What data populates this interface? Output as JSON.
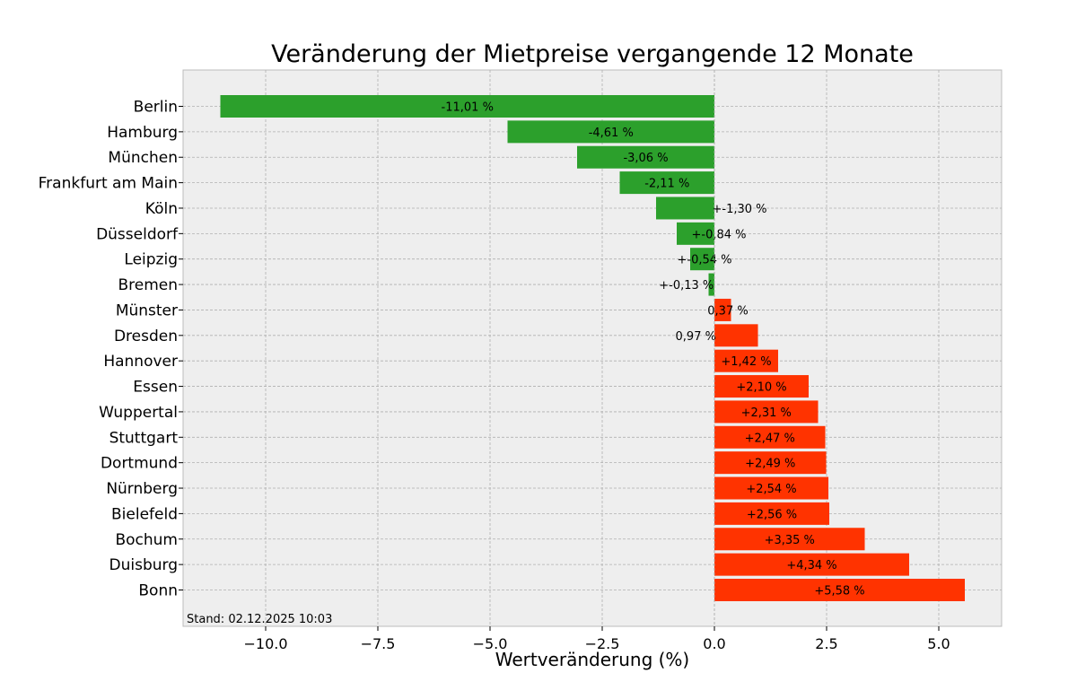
{
  "chart_data": {
    "type": "bar",
    "orientation": "horizontal",
    "title": "Veränderung der Mietpreise vergangende 12 Monate",
    "xlabel": "Wertveränderung (%)",
    "ylabel": "",
    "xlim": [
      -11.84,
      6.4
    ],
    "xticks": [
      -10.0,
      -7.5,
      -5.0,
      -2.5,
      0.0,
      2.5,
      5.0
    ],
    "xtick_labels": [
      "−10.0",
      "−7.5",
      "−5.0",
      "−2.5",
      "0.0",
      "2.5",
      "5.0"
    ],
    "grid": true,
    "categories": [
      "Berlin",
      "Hamburg",
      "München",
      "Frankfurt am Main",
      "Köln",
      "Düsseldorf",
      "Leipzig",
      "Bremen",
      "Münster",
      "Dresden",
      "Hannover",
      "Essen",
      "Wuppertal",
      "Stuttgart",
      "Dortmund",
      "Nürnberg",
      "Bielefeld",
      "Bochum",
      "Duisburg",
      "Bonn"
    ],
    "values": [
      -11.01,
      -4.61,
      -3.06,
      -2.11,
      -1.3,
      -0.84,
      -0.54,
      -0.13,
      0.37,
      0.97,
      1.42,
      2.1,
      2.31,
      2.47,
      2.49,
      2.54,
      2.56,
      3.35,
      4.34,
      5.58
    ],
    "data_labels": [
      "-11,01 %",
      "-4,61 %",
      "-3,06 %",
      "-2,11 %",
      "+-1,30 %",
      "+-0,84 %",
      "+-0,54 %",
      "+-0,13 %",
      "0,37 %",
      "0,97 %",
      "+1,42 %",
      "+2,10 %",
      "+2,31 %",
      "+2,47 %",
      "+2,49 %",
      "+2,54 %",
      "+2,56 %",
      "+3,35 %",
      "+4,34 %",
      "+5,58 %"
    ],
    "colors": {
      "negative": "#2ca02c",
      "positive": "#ff3300",
      "background": "#eeeeee"
    },
    "annotation": "Stand: 02.12.2025 10:03"
  }
}
